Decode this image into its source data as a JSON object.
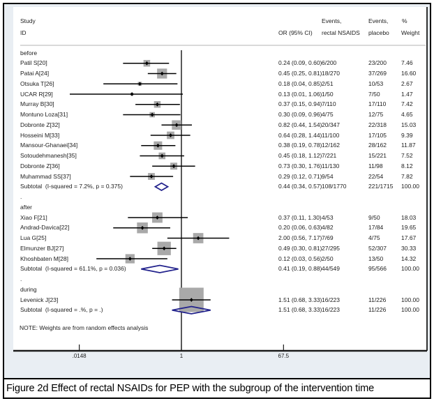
{
  "figure": {
    "caption": "Figure 2d Effect of rectal NSAIDs for PEP with the subgroup of the intervention time"
  },
  "table_headers": {
    "study_line1": "Study",
    "study_line2": "ID",
    "or_col": "OR (95% CI)",
    "events_treat_line1": "Events,",
    "events_treat_line2": "rectal NSAIDS",
    "events_ctrl_line1": "Events,",
    "events_ctrl_line2": "placebo",
    "weight_line1": "%",
    "weight_line2": "Weight"
  },
  "note": "NOTE: Weights are from random effects analysis",
  "colors": {
    "diamond_navy": "#22228c",
    "box_gray": "#a9a9a9",
    "line_black": "#000000",
    "background": "#e9eef3"
  },
  "chart_data": {
    "type": "forest",
    "effect_measure": "OR",
    "spacer": ".",
    "x_axis": {
      "scale": "log",
      "ticks": [
        0.0148,
        1,
        67.5
      ],
      "tick_labels": [
        ".0148",
        "1",
        "67.5"
      ],
      "null_line": 1,
      "range": [
        0.0148,
        67.5
      ]
    },
    "groups": [
      {
        "label": "before",
        "studies": [
          {
            "id": "Patil S[20]",
            "or": 0.24,
            "ci_low": 0.09,
            "ci_high": 0.6,
            "or_text": "0.24 (0.09, 0.60)",
            "events_nsaids": "6/200",
            "events_placebo": "23/200",
            "weight": "7.46"
          },
          {
            "id": "Patai A[24]",
            "or": 0.45,
            "ci_low": 0.25,
            "ci_high": 0.81,
            "or_text": "0.45 (0.25, 0.81)",
            "events_nsaids": "18/270",
            "events_placebo": "37/269",
            "weight": "16.60"
          },
          {
            "id": "Otsuka T[26]",
            "or": 0.18,
            "ci_low": 0.04,
            "ci_high": 0.85,
            "or_text": "0.18 (0.04, 0.85)",
            "events_nsaids": "2/51",
            "events_placebo": "10/53",
            "weight": "2.67"
          },
          {
            "id": "UCAR R[29]",
            "or": 0.13,
            "ci_low": 0.01,
            "ci_high": 1.06,
            "or_text": "0.13 (0.01, 1.06)",
            "events_nsaids": "1/50",
            "events_placebo": "7/50",
            "weight": "1.47"
          },
          {
            "id": "Murray B[30]",
            "or": 0.37,
            "ci_low": 0.15,
            "ci_high": 0.94,
            "or_text": "0.37 (0.15, 0.94)",
            "events_nsaids": "7/110",
            "events_placebo": "17/110",
            "weight": "7.42"
          },
          {
            "id": "Montuno Loza[31]",
            "or": 0.3,
            "ci_low": 0.09,
            "ci_high": 0.96,
            "or_text": "0.30 (0.09, 0.96)",
            "events_nsaids": "4/75",
            "events_placebo": "12/75",
            "weight": "4.65"
          },
          {
            "id": "Dobronte Z[32]",
            "or": 0.82,
            "ci_low": 0.44,
            "ci_high": 1.54,
            "or_text": "0.82 (0.44, 1.54)",
            "events_nsaids": "20/347",
            "events_placebo": "22/318",
            "weight": "15.03"
          },
          {
            "id": "Hosseini M[33]",
            "or": 0.64,
            "ci_low": 0.28,
            "ci_high": 1.44,
            "or_text": "0.64 (0.28, 1.44)",
            "events_nsaids": "11/100",
            "events_placebo": "17/105",
            "weight": "9.39"
          },
          {
            "id": "Mansour-Ghanaei[34]",
            "or": 0.38,
            "ci_low": 0.19,
            "ci_high": 0.78,
            "or_text": "0.38 (0.19, 0.78)",
            "events_nsaids": "12/162",
            "events_placebo": "28/162",
            "weight": "11.87"
          },
          {
            "id": "Sotoudehmanesh[35]",
            "or": 0.45,
            "ci_low": 0.18,
            "ci_high": 1.12,
            "or_text": "0.45 (0.18, 1.12)",
            "events_nsaids": "7/221",
            "events_placebo": "15/221",
            "weight": "7.52"
          },
          {
            "id": "Dobronte Z[36]",
            "or": 0.73,
            "ci_low": 0.3,
            "ci_high": 1.76,
            "or_text": "0.73 (0.30, 1.76)",
            "events_nsaids": "11/130",
            "events_placebo": "11/98",
            "weight": "8.12"
          },
          {
            "id": "Muhammad SS[37]",
            "or": 0.29,
            "ci_low": 0.12,
            "ci_high": 0.71,
            "or_text": "0.29 (0.12, 0.71)",
            "events_nsaids": "9/54",
            "events_placebo": "22/54",
            "weight": "7.82"
          }
        ],
        "subtotal": {
          "id": "Subtotal  (I-squared = 7.2%, p = 0.375)",
          "or": 0.44,
          "ci_low": 0.34,
          "ci_high": 0.57,
          "or_text": "0.44 (0.34, 0.57)",
          "events_nsaids": "108/1770",
          "events_placebo": "221/1715",
          "weight": "100.00"
        }
      },
      {
        "label": "after",
        "studies": [
          {
            "id": "Xiao F[21]",
            "or": 0.37,
            "ci_low": 0.11,
            "ci_high": 1.3,
            "or_text": "0.37 (0.11, 1.30)",
            "events_nsaids": "4/53",
            "events_placebo": "9/50",
            "weight": "18.03"
          },
          {
            "id": "Andrad-Davica[22]",
            "or": 0.2,
            "ci_low": 0.06,
            "ci_high": 0.63,
            "or_text": "0.20 (0.06, 0.63)",
            "events_nsaids": "4/82",
            "events_placebo": "17/84",
            "weight": "19.65"
          },
          {
            "id": "Lua G[25]",
            "or": 2.0,
            "ci_low": 0.56,
            "ci_high": 7.17,
            "or_text": "2.00 (0.56, 7.17)",
            "events_nsaids": "7/69",
            "events_placebo": "4/75",
            "weight": "17.67"
          },
          {
            "id": "Elmunzer BJ[27]",
            "or": 0.49,
            "ci_low": 0.3,
            "ci_high": 0.81,
            "or_text": "0.49 (0.30, 0.81)",
            "events_nsaids": "27/295",
            "events_placebo": "52/307",
            "weight": "30.33"
          },
          {
            "id": "Khoshbaten M[28]",
            "or": 0.12,
            "ci_low": 0.03,
            "ci_high": 0.56,
            "or_text": "0.12 (0.03, 0.56)",
            "events_nsaids": "2/50",
            "events_placebo": "13/50",
            "weight": "14.32"
          }
        ],
        "subtotal": {
          "id": "Subtotal  (I-squared = 61.1%, p = 0.036)",
          "or": 0.41,
          "ci_low": 0.19,
          "ci_high": 0.88,
          "or_text": "0.41 (0.19, 0.88)",
          "events_nsaids": "44/549",
          "events_placebo": "95/566",
          "weight": "100.00"
        }
      },
      {
        "label": "during",
        "studies": [
          {
            "id": "Levenick J[23]",
            "or": 1.51,
            "ci_low": 0.68,
            "ci_high": 3.33,
            "or_text": "1.51 (0.68, 3.33)",
            "events_nsaids": "16/223",
            "events_placebo": "11/226",
            "weight": "100.00"
          }
        ],
        "subtotal": {
          "id": "Subtotal  (I-squared = .%, p = .)",
          "or": 1.51,
          "ci_low": 0.68,
          "ci_high": 3.33,
          "or_text": "1.51 (0.68, 3.33)",
          "events_nsaids": "16/223",
          "events_placebo": "11/226",
          "weight": "100.00"
        }
      }
    ]
  }
}
